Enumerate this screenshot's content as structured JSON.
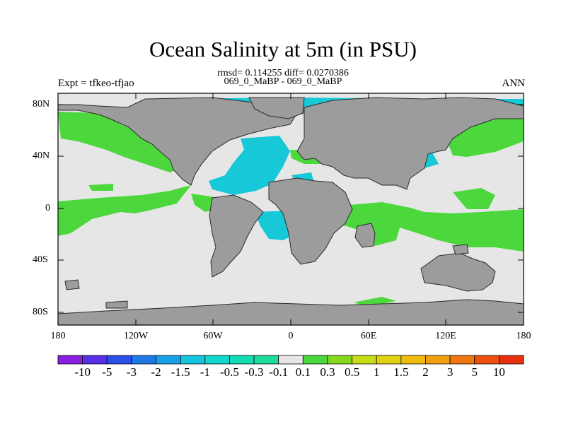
{
  "title": "Ocean Salinity at 5m (in PSU)",
  "stats": "rmsd= 0.114255 diff= 0.0270386",
  "comparison": "069_0_MaBP - 069_0_MaBP",
  "experiment": "Expt = tfkeo-tfjao",
  "period": "ANN",
  "lat_ticks": [
    "80N",
    "40N",
    "0",
    "40S",
    "80S"
  ],
  "lon_ticks": [
    "180",
    "120W",
    "60W",
    "0",
    "60E",
    "120E",
    "180"
  ],
  "colorbar": {
    "labels": [
      "-10",
      "-5",
      "-3",
      "-2",
      "-1.5",
      "-1",
      "-0.5",
      "-0.3",
      "-0.1",
      "0.1",
      "0.3",
      "0.5",
      "1",
      "1.5",
      "2",
      "3",
      "5",
      "10"
    ],
    "colors": [
      "#8a1fe0",
      "#5a2fe8",
      "#2c4fe8",
      "#1e78e6",
      "#1aa0e6",
      "#16c4e0",
      "#10d8cc",
      "#12dcb4",
      "#20dc9c",
      "#e6e6e6",
      "#4cd83c",
      "#86d81e",
      "#c6dc14",
      "#e2d012",
      "#eebc10",
      "#f0a010",
      "#f07810",
      "#ee5010",
      "#e83010"
    ]
  },
  "colors": {
    "land": "#9c9c9c",
    "ocean_neutral": "#e6e6e6",
    "positive": "#4cd83c",
    "negative": "#16c8d8"
  }
}
